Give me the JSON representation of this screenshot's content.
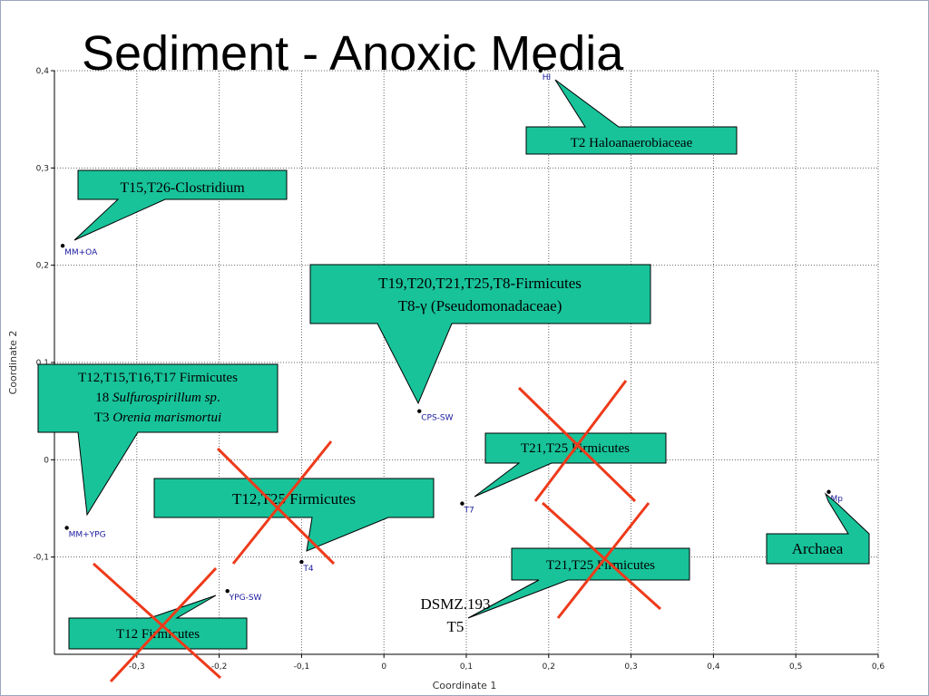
{
  "slide": {
    "title": "Sediment - Anoxic Media",
    "dsmz_label": "DSMZ.193",
    "t5_label": "T5"
  },
  "callouts": {
    "haloanaerobiaceae": "T2 Haloanaerobiaceae",
    "clostridium": "T15,T26-Clostridium",
    "firmicutes_line1": "T19,T20,T21,T25,T8-Firmicutes",
    "firmicutes_line2": "T8-γ (Pseudomonadaceae)",
    "sulfuro_line1": "T12,T15,T16,T17 Firmicutes",
    "sulfuro_line2_num": "18 ",
    "sulfuro_line2_italic": "Sulfurospirillum sp",
    "sulfuro_line2_end": ".",
    "sulfuro_line3_num": "T3 ",
    "sulfuro_line3_italic": "Orenia marismortui",
    "t21_upper": "T21,T25 Firmicutes",
    "t12_t25": "T12,T25 Firmicutes",
    "t21_lower": "T21,T25 Firmicutes",
    "t12": "T12 Firmicutes",
    "archaea": "Archaea"
  },
  "colors": {
    "callout_fill": "#18c39a",
    "cross": "#ee3a1a",
    "point": "#000000",
    "point_label": "#1a1aa0"
  },
  "chart_data": {
    "type": "scatter",
    "xlabel": "Coordinate 1",
    "ylabel": "Coordinate 2",
    "xlim": [
      -0.4,
      0.6
    ],
    "ylim": [
      -0.2,
      0.4
    ],
    "x_ticks": [
      "-0,3",
      "-0,2",
      "-0,1",
      "0",
      "0,1",
      "0,2",
      "0,3",
      "0,4",
      "0,5",
      "0,6"
    ],
    "y_ticks": [
      "-0,1",
      "0",
      "0,1",
      "0,2",
      "0,3",
      "0,4"
    ],
    "grid": true,
    "points": [
      {
        "label": "HI",
        "x": 0.19,
        "y": 0.4
      },
      {
        "label": "MM+OA",
        "x": -0.39,
        "y": 0.22
      },
      {
        "label": "CPS-SW",
        "x": 0.043,
        "y": 0.05
      },
      {
        "label": "T7",
        "x": 0.095,
        "y": -0.045
      },
      {
        "label": "Mp",
        "x": 0.54,
        "y": -0.033
      },
      {
        "label": "MM+YPG",
        "x": -0.385,
        "y": -0.07
      },
      {
        "label": "T4",
        "x": -0.1,
        "y": -0.105
      },
      {
        "label": "YPG-SW",
        "x": -0.19,
        "y": -0.135
      }
    ]
  }
}
